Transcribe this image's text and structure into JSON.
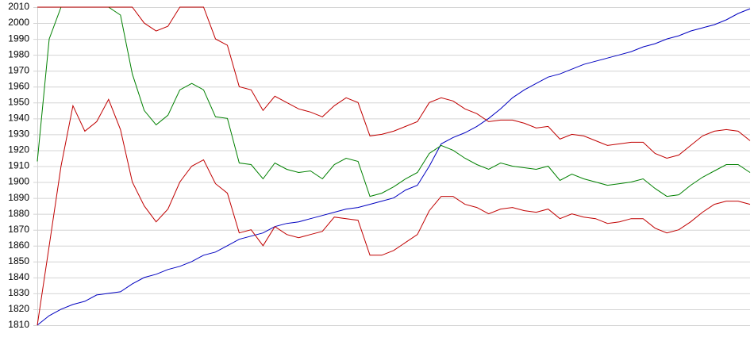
{
  "chart_data": {
    "type": "line",
    "categories": [
      null,
      null,
      null,
      null,
      null,
      null,
      null,
      null,
      null,
      null,
      null,
      null,
      null,
      null,
      null,
      null,
      null,
      null,
      null,
      null,
      null,
      null,
      null,
      null,
      null,
      null,
      null,
      null,
      null,
      null,
      null,
      null,
      null,
      null,
      null,
      null,
      null,
      null,
      null,
      null,
      null,
      null,
      null,
      null,
      null,
      null,
      null,
      null,
      null,
      null,
      null,
      null,
      null,
      null,
      null,
      null,
      null,
      null,
      null,
      null,
      null
    ],
    "series": [
      {
        "color": "#0000c0",
        "values": [
          1810,
          1816,
          1820,
          1823,
          1825,
          1829,
          1830,
          1831,
          1836,
          1840,
          1842,
          1845,
          1847,
          1850,
          1854,
          1856,
          1860,
          1864,
          1866,
          1868,
          1872,
          1874,
          1875,
          1877,
          1879,
          1881,
          1883,
          1884,
          1886,
          1888,
          1890,
          1895,
          1898,
          1910,
          1924,
          1928,
          1931,
          1935,
          1940,
          1946,
          1953,
          1958,
          1962,
          1966,
          1968,
          1971,
          1974,
          1976,
          1978,
          1980,
          1982,
          1985,
          1987,
          1990,
          1992,
          1995,
          1997,
          1999,
          2002,
          2006,
          2009
        ]
      },
      {
        "color": "#008000",
        "values": [
          1913,
          1990,
          2010,
          2010,
          2010,
          2010,
          2010,
          2005,
          1968,
          1945,
          1936,
          1942,
          1958,
          1962,
          1958,
          1941,
          1940,
          1912,
          1911,
          1902,
          1912,
          1908,
          1906,
          1907,
          1902,
          1911,
          1915,
          1913,
          1891,
          1893,
          1897,
          1902,
          1906,
          1918,
          1923,
          1920,
          1915,
          1911,
          1908,
          1912,
          1910,
          1909,
          1908,
          1910,
          1901,
          1905,
          1902,
          1900,
          1898,
          1899,
          1900,
          1902,
          1896,
          1891,
          1892,
          1898,
          1903,
          1907,
          1911,
          1911,
          1906
        ]
      },
      {
        "color": "#c00000",
        "values": [
          2010,
          2010,
          2010,
          2010,
          2010,
          2010,
          2010,
          2010,
          2010,
          2000,
          1995,
          1998,
          2010,
          2010,
          2010,
          1990,
          1986,
          1960,
          1958,
          1945,
          1954,
          1950,
          1946,
          1944,
          1941,
          1948,
          1953,
          1950,
          1929,
          1930,
          1932,
          1935,
          1938,
          1950,
          1953,
          1951,
          1946,
          1943,
          1938,
          1939,
          1939,
          1937,
          1934,
          1935,
          1927,
          1930,
          1929,
          1926,
          1923,
          1924,
          1925,
          1925,
          1918,
          1915,
          1917,
          1923,
          1929,
          1932,
          1933,
          1932,
          1926
        ]
      },
      {
        "color": "#c00000",
        "values": [
          1810,
          1860,
          1910,
          1948,
          1932,
          1938,
          1952,
          1933,
          1900,
          1885,
          1875,
          1883,
          1900,
          1910,
          1914,
          1899,
          1893,
          1868,
          1870,
          1860,
          1872,
          1867,
          1865,
          1867,
          1869,
          1878,
          1877,
          1876,
          1854,
          1854,
          1857,
          1862,
          1867,
          1882,
          1891,
          1891,
          1886,
          1884,
          1880,
          1883,
          1884,
          1882,
          1881,
          1883,
          1877,
          1880,
          1878,
          1877,
          1874,
          1875,
          1877,
          1877,
          1871,
          1868,
          1870,
          1875,
          1881,
          1886,
          1888,
          1888,
          1886
        ]
      }
    ],
    "ylim": [
      1810,
      2010
    ],
    "yticks": [
      1810,
      1820,
      1830,
      1840,
      1850,
      1860,
      1870,
      1880,
      1890,
      1900,
      1910,
      1920,
      1930,
      1940,
      1950,
      1960,
      1970,
      1980,
      1990,
      2000,
      2010
    ],
    "grid": true
  }
}
